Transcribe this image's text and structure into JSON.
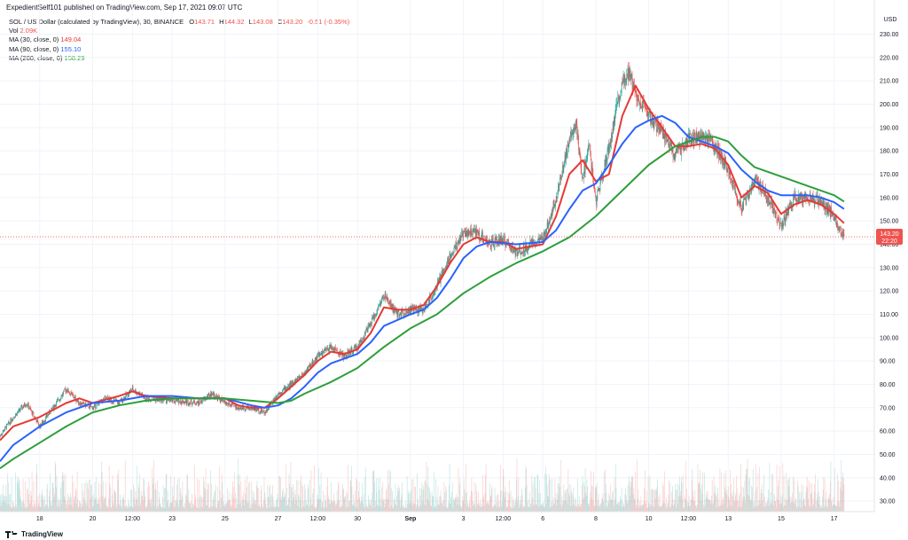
{
  "header": {
    "published": "ExpedientSelf101 published on TradingView.com, Sep 17, 2021 09:07 UTC"
  },
  "legend": {
    "title": "SOL / US Dollar (calculated by TradingView), 30, BINANCE",
    "ohlc": {
      "o_label": "O",
      "o": "143.71",
      "h_label": "H",
      "h": "144.32",
      "l_label": "L",
      "l": "143.08",
      "c_label": "C",
      "c": "143.20",
      "change": "-0.51 (-0.35%)"
    },
    "vol_label": "Vol",
    "vol": "2.09K",
    "ma30_label": "MA (30, close, 0)",
    "ma30": "149.04",
    "ma90_label": "MA (90, close, 0)",
    "ma90": "155.10",
    "ma200_label": "MA (200, close, 0)",
    "ma200": "158.29"
  },
  "footer": {
    "brand": "TradingView"
  },
  "colors": {
    "up": "#26a69a",
    "down": "#ef5350",
    "ma30": "#e53935",
    "ma90": "#2962ff",
    "ma200": "#2e9e3a",
    "grid": "#f0f3fa",
    "price_badge": "#ef5350"
  },
  "chart_data": {
    "type": "line",
    "currency": "USD",
    "x_ticks": [
      "18",
      "20",
      "12:00",
      "23",
      "25",
      "27",
      "12:00",
      "30",
      "Sep",
      "3",
      "12:00",
      "6",
      "8",
      "10",
      "12:00",
      "13",
      "15",
      "17"
    ],
    "y_ticks": [
      30,
      40,
      50,
      60,
      70,
      80,
      90,
      100,
      110,
      120,
      130,
      140,
      150,
      160,
      170,
      180,
      190,
      200,
      210,
      220,
      230
    ],
    "y_tick_labels": [
      "30.00",
      "40.00",
      "50.00",
      "60.00",
      "70.00",
      "80.00",
      "90.00",
      "100.00",
      "110.00",
      "120.00",
      "130.00",
      "140.00",
      "150.00",
      "160.00",
      "170.00",
      "180.00",
      "190.00",
      "200.00",
      "210.00",
      "220.00",
      "230.00"
    ],
    "ylim": [
      27,
      234
    ],
    "x_domain": [
      "Aug 16 12:00",
      "Sep 18 06:00"
    ],
    "grid": true,
    "current_price": 143.2,
    "current_price_label": "143.20",
    "countdown_label": "22:20",
    "price_path": [
      [
        "Aug 16 12:00",
        58
      ],
      [
        "Aug 17",
        66
      ],
      [
        "Aug 17 12:00",
        72
      ],
      [
        "Aug 18",
        62
      ],
      [
        "Aug 18 12:00",
        70
      ],
      [
        "Aug 19",
        78
      ],
      [
        "Aug 19 12:00",
        72
      ],
      [
        "Aug 20",
        70
      ],
      [
        "Aug 20 12:00",
        74
      ],
      [
        "Aug 21",
        72
      ],
      [
        "Aug 21 12:00",
        78
      ],
      [
        "Aug 22",
        74
      ],
      [
        "Aug 23",
        73
      ],
      [
        "Aug 24",
        72
      ],
      [
        "Aug 24 12:00",
        76
      ],
      [
        "Aug 25",
        72
      ],
      [
        "Aug 25 12:00",
        70
      ],
      [
        "Aug 26",
        70
      ],
      [
        "Aug 26 12:00",
        68
      ],
      [
        "Aug 27",
        76
      ],
      [
        "Aug 27 12:00",
        80
      ],
      [
        "Aug 28",
        85
      ],
      [
        "Aug 28 12:00",
        92
      ],
      [
        "Aug 29",
        96
      ],
      [
        "Aug 29 12:00",
        92
      ],
      [
        "Aug 30",
        96
      ],
      [
        "Aug 30 12:00",
        106
      ],
      [
        "Aug 31",
        118
      ],
      [
        "Aug 31 12:00",
        110
      ],
      [
        "Sep 1",
        112
      ],
      [
        "Sep 1 12:00",
        112
      ],
      [
        "Sep 2",
        122
      ],
      [
        "Sep 2 12:00",
        135
      ],
      [
        "Sep 3",
        145
      ],
      [
        "Sep 3 12:00",
        145
      ],
      [
        "Sep 4",
        140
      ],
      [
        "Sep 4 12:00",
        142
      ],
      [
        "Sep 5",
        136
      ],
      [
        "Sep 5 12:00",
        140
      ],
      [
        "Sep 6",
        142
      ],
      [
        "Sep 6 12:00",
        160
      ],
      [
        "Sep 7",
        185
      ],
      [
        "Sep 7 06:00",
        192
      ],
      [
        "Sep 7 12:00",
        168
      ],
      [
        "Sep 7 18:00",
        182
      ],
      [
        "Sep 8",
        158
      ],
      [
        "Sep 8 12:00",
        182
      ],
      [
        "Sep 9",
        210
      ],
      [
        "Sep 9 06:00",
        214
      ],
      [
        "Sep 9 12:00",
        205
      ],
      [
        "Sep 10",
        195
      ],
      [
        "Sep 10 12:00",
        188
      ],
      [
        "Sep 11",
        178
      ],
      [
        "Sep 11 12:00",
        185
      ],
      [
        "Sep 12",
        186
      ],
      [
        "Sep 12 12:00",
        182
      ],
      [
        "Sep 13",
        172
      ],
      [
        "Sep 13 12:00",
        155
      ],
      [
        "Sep 14",
        168
      ],
      [
        "Sep 14 12:00",
        160
      ],
      [
        "Sep 15",
        148
      ],
      [
        "Sep 15 12:00",
        160
      ],
      [
        "Sep 16",
        160
      ],
      [
        "Sep 16 12:00",
        158
      ],
      [
        "Sep 17",
        152
      ],
      [
        "Sep 17 09:00",
        143.2
      ]
    ],
    "series": [
      {
        "name": "MA (30, close, 0)",
        "color": "#e53935",
        "points": [
          [
            "Aug 16 12:00",
            56
          ],
          [
            "Aug 17",
            62
          ],
          [
            "Aug 18",
            66
          ],
          [
            "Aug 19",
            72
          ],
          [
            "Aug 19 12:00",
            74
          ],
          [
            "Aug 20",
            72
          ],
          [
            "Aug 21",
            75
          ],
          [
            "Aug 21 12:00",
            77
          ],
          [
            "Aug 22",
            75
          ],
          [
            "Aug 23",
            74
          ],
          [
            "Aug 24",
            74
          ],
          [
            "Aug 25",
            74
          ],
          [
            "Aug 25 12:00",
            71
          ],
          [
            "Aug 26",
            70
          ],
          [
            "Aug 26 12:00",
            70
          ],
          [
            "Aug 27",
            74
          ],
          [
            "Aug 27 12:00",
            79
          ],
          [
            "Aug 28",
            84
          ],
          [
            "Aug 28 12:00",
            90
          ],
          [
            "Aug 29",
            94
          ],
          [
            "Aug 29 12:00",
            93
          ],
          [
            "Aug 30",
            95
          ],
          [
            "Aug 30 12:00",
            102
          ],
          [
            "Aug 31",
            113
          ],
          [
            "Aug 31 12:00",
            112
          ],
          [
            "Sep 1",
            112
          ],
          [
            "Sep 1 12:00",
            114
          ],
          [
            "Sep 2",
            122
          ],
          [
            "Sep 2 12:00",
            132
          ],
          [
            "Sep 3",
            140
          ],
          [
            "Sep 3 12:00",
            143
          ],
          [
            "Sep 4",
            141
          ],
          [
            "Sep 4 12:00",
            141
          ],
          [
            "Sep 5",
            138
          ],
          [
            "Sep 5 12:00",
            139
          ],
          [
            "Sep 6",
            140
          ],
          [
            "Sep 6 12:00",
            152
          ],
          [
            "Sep 7",
            170
          ],
          [
            "Sep 7 12:00",
            176
          ],
          [
            "Sep 8",
            167
          ],
          [
            "Sep 8 12:00",
            170
          ],
          [
            "Sep 9",
            195
          ],
          [
            "Sep 9 12:00",
            208
          ],
          [
            "Sep 10",
            198
          ],
          [
            "Sep 10 12:00",
            190
          ],
          [
            "Sep 11",
            182
          ],
          [
            "Sep 11 12:00",
            182
          ],
          [
            "Sep 12",
            183
          ],
          [
            "Sep 12 12:00",
            181
          ],
          [
            "Sep 13",
            174
          ],
          [
            "Sep 13 12:00",
            160
          ],
          [
            "Sep 14",
            165
          ],
          [
            "Sep 14 12:00",
            162
          ],
          [
            "Sep 15",
            153
          ],
          [
            "Sep 15 12:00",
            157
          ],
          [
            "Sep 16",
            159
          ],
          [
            "Sep 16 12:00",
            157
          ],
          [
            "Sep 17",
            153
          ],
          [
            "Sep 17 09:00",
            149.04
          ]
        ]
      },
      {
        "name": "MA (90, close, 0)",
        "color": "#2962ff",
        "points": [
          [
            "Aug 16 12:00",
            47
          ],
          [
            "Aug 17",
            54
          ],
          [
            "Aug 18",
            62
          ],
          [
            "Aug 19",
            68
          ],
          [
            "Aug 20",
            72
          ],
          [
            "Aug 21",
            73
          ],
          [
            "Aug 22",
            75
          ],
          [
            "Aug 23",
            75
          ],
          [
            "Aug 24",
            74
          ],
          [
            "Aug 25",
            74
          ],
          [
            "Aug 26",
            71
          ],
          [
            "Aug 26 12:00",
            70
          ],
          [
            "Aug 27",
            71
          ],
          [
            "Aug 27 12:00",
            74
          ],
          [
            "Aug 28",
            79
          ],
          [
            "Aug 28 12:00",
            85
          ],
          [
            "Aug 29",
            89
          ],
          [
            "Aug 30",
            93
          ],
          [
            "Aug 30 12:00",
            98
          ],
          [
            "Aug 31",
            105
          ],
          [
            "Sep 1",
            110
          ],
          [
            "Sep 1 12:00",
            112
          ],
          [
            "Sep 2",
            117
          ],
          [
            "Sep 2 12:00",
            125
          ],
          [
            "Sep 3",
            134
          ],
          [
            "Sep 3 12:00",
            139
          ],
          [
            "Sep 4",
            141
          ],
          [
            "Sep 5",
            140
          ],
          [
            "Sep 6",
            141
          ],
          [
            "Sep 6 12:00",
            146
          ],
          [
            "Sep 7",
            155
          ],
          [
            "Sep 7 12:00",
            163
          ],
          [
            "Sep 8",
            166
          ],
          [
            "Sep 8 12:00",
            174
          ],
          [
            "Sep 9",
            183
          ],
          [
            "Sep 9 12:00",
            190
          ],
          [
            "Sep 10",
            193
          ],
          [
            "Sep 10 12:00",
            195
          ],
          [
            "Sep 11",
            192
          ],
          [
            "Sep 11 12:00",
            186
          ],
          [
            "Sep 12",
            184
          ],
          [
            "Sep 12 12:00",
            182
          ],
          [
            "Sep 13",
            179
          ],
          [
            "Sep 13 12:00",
            172
          ],
          [
            "Sep 14",
            167
          ],
          [
            "Sep 14 12:00",
            163
          ],
          [
            "Sep 15",
            161
          ],
          [
            "Sep 15 12:00",
            161
          ],
          [
            "Sep 16",
            161
          ],
          [
            "Sep 16 12:00",
            160
          ],
          [
            "Sep 17",
            158
          ],
          [
            "Sep 17 09:00",
            155.1
          ]
        ]
      },
      {
        "name": "MA (200, close, 0)",
        "color": "#2e9e3a",
        "points": [
          [
            "Aug 16 12:00",
            44
          ],
          [
            "Aug 17",
            48
          ],
          [
            "Aug 18",
            55
          ],
          [
            "Aug 19",
            62
          ],
          [
            "Aug 20",
            68
          ],
          [
            "Aug 21",
            71
          ],
          [
            "Aug 22",
            73
          ],
          [
            "Aug 23",
            74
          ],
          [
            "Aug 24",
            74
          ],
          [
            "Aug 25",
            74
          ],
          [
            "Aug 26",
            73
          ],
          [
            "Aug 27",
            72
          ],
          [
            "Aug 27 12:00",
            73
          ],
          [
            "Aug 28",
            76
          ],
          [
            "Aug 29",
            81
          ],
          [
            "Aug 30",
            87
          ],
          [
            "Aug 31",
            96
          ],
          [
            "Sep 1",
            104
          ],
          [
            "Sep 2",
            110
          ],
          [
            "Sep 3",
            119
          ],
          [
            "Sep 4",
            126
          ],
          [
            "Sep 5",
            132
          ],
          [
            "Sep 6",
            137
          ],
          [
            "Sep 7",
            143
          ],
          [
            "Sep 8",
            152
          ],
          [
            "Sep 9",
            163
          ],
          [
            "Sep 10",
            174
          ],
          [
            "Sep 11",
            182
          ],
          [
            "Sep 12",
            186
          ],
          [
            "Sep 12 12:00",
            186
          ],
          [
            "Sep 13",
            184
          ],
          [
            "Sep 13 12:00",
            178
          ],
          [
            "Sep 14",
            173
          ],
          [
            "Sep 15",
            169
          ],
          [
            "Sep 16",
            165
          ],
          [
            "Sep 17",
            161
          ],
          [
            "Sep 17 09:00",
            158.29
          ]
        ]
      }
    ]
  }
}
